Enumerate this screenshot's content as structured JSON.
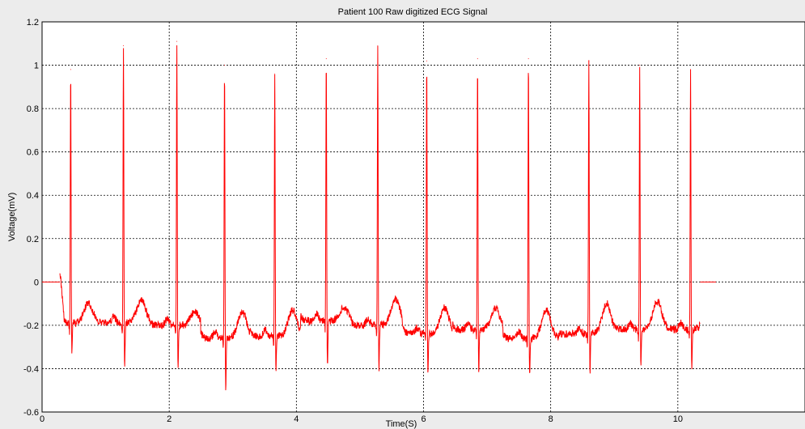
{
  "chart_data": {
    "type": "line",
    "title": "Patient 100 Raw digitized ECG Signal",
    "xlabel": "Time(S)",
    "ylabel": "Voltage(mV)",
    "xlim": [
      0,
      12
    ],
    "ylim": [
      -0.6,
      1.2
    ],
    "x_ticks": [
      "0",
      "2",
      "4",
      "6",
      "8",
      "10"
    ],
    "y_ticks": [
      "-0.6",
      "-0.4",
      "-0.2",
      "0",
      "0.2",
      "0.4",
      "0.6",
      "0.8",
      "1",
      "1.2"
    ],
    "x_tick_values": [
      0,
      2,
      4,
      6,
      8,
      10
    ],
    "y_tick_values": [
      -0.6,
      -0.4,
      -0.2,
      0,
      0.2,
      0.4,
      0.6,
      0.8,
      1,
      1.2
    ],
    "grid": true,
    "line_color": "#ff0000",
    "baseline_segments": [
      {
        "x": [
          0,
          0.28
        ],
        "y": [
          0,
          0
        ]
      },
      {
        "x": [
          10.35,
          10.6
        ],
        "y": [
          0,
          0
        ]
      }
    ],
    "signal_start": 0.28,
    "signal_end": 10.35,
    "beats": [
      {
        "t": 0.45,
        "r": 0.98,
        "s": -0.34,
        "base": -0.19,
        "twave": -0.1
      },
      {
        "t": 1.28,
        "r": 1.09,
        "s": -0.4,
        "base": -0.19,
        "twave": -0.08
      },
      {
        "t": 2.12,
        "r": 1.11,
        "s": -0.42,
        "base": -0.2,
        "twave": -0.14
      },
      {
        "t": 2.87,
        "r": 1.0,
        "s": -0.5,
        "base": -0.26,
        "twave": -0.14
      },
      {
        "t": 3.66,
        "r": 0.96,
        "s": -0.42,
        "base": -0.25,
        "twave": -0.13
      },
      {
        "t": 4.47,
        "r": 1.03,
        "s": -0.4,
        "base": -0.18,
        "twave": -0.12
      },
      {
        "t": 5.28,
        "r": 1.09,
        "s": -0.41,
        "base": -0.2,
        "twave": -0.08
      },
      {
        "t": 6.05,
        "r": 1.02,
        "s": -0.43,
        "base": -0.24,
        "twave": -0.12
      },
      {
        "t": 6.85,
        "r": 1.03,
        "s": -0.43,
        "base": -0.22,
        "twave": -0.12
      },
      {
        "t": 7.65,
        "r": 1.03,
        "s": -0.44,
        "base": -0.26,
        "twave": -0.13
      },
      {
        "t": 8.6,
        "r": 1.02,
        "s": -0.42,
        "base": -0.24,
        "twave": -0.1
      },
      {
        "t": 9.4,
        "r": 1.0,
        "s": -0.41,
        "base": -0.22,
        "twave": -0.09
      },
      {
        "t": 10.2,
        "r": 0.98,
        "s": -0.4,
        "base": -0.22,
        "twave": -0.1
      }
    ]
  }
}
